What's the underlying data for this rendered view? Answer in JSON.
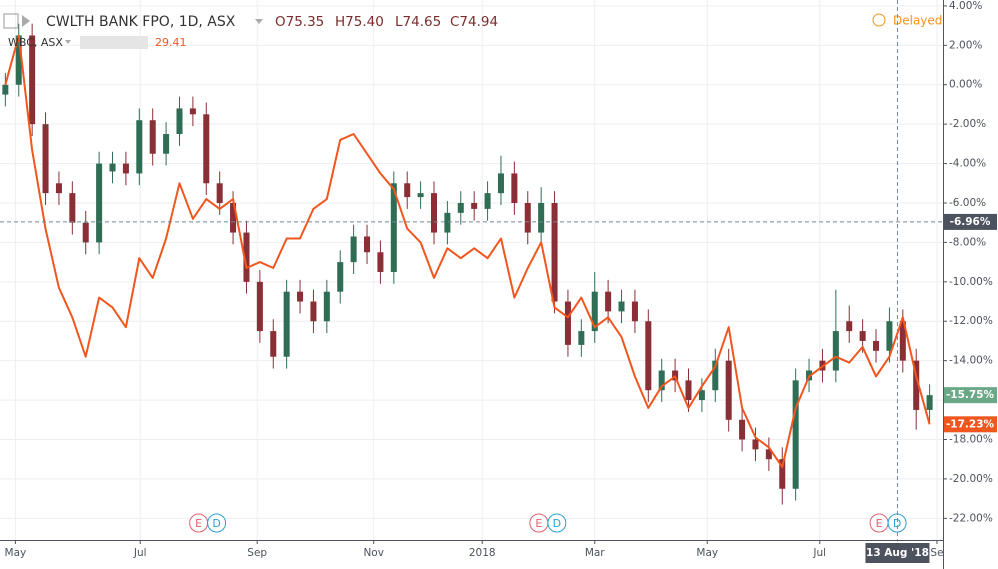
{
  "chart_data": {
    "type": "candlestick",
    "header": {
      "title": "CWLTH BANK FPO, 1D, ASX",
      "ohlc": [
        "O75.35",
        "H75.40",
        "L74.65",
        "C74.94"
      ],
      "compare_name": "WBC, ASX",
      "compare_value": "29.41",
      "status": "Delayed"
    },
    "xlim": [
      -0.4,
      70
    ],
    "xticks": [
      {
        "value": 0.75,
        "label": "May"
      },
      {
        "value": 10.07,
        "label": "Jul"
      },
      {
        "value": 18.8,
        "label": "Sep"
      },
      {
        "value": 27.5,
        "label": "Nov"
      },
      {
        "value": 35.6,
        "label": "2018"
      },
      {
        "value": 44,
        "label": "Mar"
      },
      {
        "value": 52.4,
        "label": "May"
      },
      {
        "value": 60.8,
        "label": "Jul"
      },
      {
        "value": 69.55,
        "label": "Se"
      }
    ],
    "ylim": [
      -23.1,
      4.3
    ],
    "yticks": [
      {
        "value": 4,
        "label": "4.00%"
      },
      {
        "value": 2,
        "label": "2.00%"
      },
      {
        "value": 0,
        "label": "0.00%"
      },
      {
        "value": -2,
        "label": "-2.00%"
      },
      {
        "value": -4,
        "label": "-4.00%"
      },
      {
        "value": -6,
        "label": "-6.00%"
      },
      {
        "value": -8,
        "label": "-8.00%"
      },
      {
        "value": -10,
        "label": "-10.00%"
      },
      {
        "value": -12,
        "label": "-12.00%"
      },
      {
        "value": -14,
        "label": "-14.00%"
      },
      {
        "value": -16,
        "label": "-16.00%"
      },
      {
        "value": -18,
        "label": "-18.00%"
      },
      {
        "value": -20,
        "label": "-20.00%"
      },
      {
        "value": -22,
        "label": "-22.00%"
      }
    ],
    "grid": true,
    "series": [
      {
        "name": "CWLTH BANK FPO, 1D, ASX",
        "up_color": "#2f6e55",
        "down_color": "#8a2f35",
        "last_label": "-15.75%",
        "last_color": "#6aa888",
        "open": [
          -0.5,
          0,
          2.5,
          -2,
          -5,
          -5.5,
          -7,
          -8,
          -4.4,
          -4,
          -4.5,
          -1.8,
          -3.5,
          -2.5,
          -1.2,
          -1.5,
          -5,
          -6,
          -7.5,
          -10,
          -12.5,
          -13.8,
          -10.5,
          -11,
          -12,
          -10.5,
          -9,
          -7.7,
          -8.5,
          -9.5,
          -5,
          -5.7,
          -5.5,
          -7.5,
          -6.5,
          -6,
          -6.3,
          -5.5,
          -4.5,
          -6,
          -7.5,
          -6,
          -11,
          -13.2,
          -12.5,
          -10.5,
          -11.5,
          -11,
          -12,
          -15.5,
          -14.5,
          -15,
          -16,
          -15.5,
          -14,
          -17,
          -18,
          -18.5,
          -19,
          -20.5,
          -15,
          -14,
          -14.5,
          -12,
          -12.5,
          -13,
          -13.5,
          -12,
          -14,
          -16.5
        ],
        "high": [
          0.6,
          3.1,
          3.1,
          -1.4,
          -4.4,
          -4.9,
          -6.4,
          -3.4,
          -3.4,
          -3.4,
          -1.2,
          -1.2,
          -1.9,
          -0.6,
          -0.6,
          -0.9,
          -4.4,
          -5.4,
          -6.9,
          -9.4,
          -11.9,
          -9.9,
          -9.9,
          -10.4,
          -9.9,
          -8.4,
          -7.1,
          -7.1,
          -7.9,
          -4.4,
          -4.4,
          -4.9,
          -4.9,
          -5.9,
          -5.4,
          -5.4,
          -4.9,
          -3.6,
          -3.9,
          -5.4,
          -5.2,
          -5.4,
          -10.4,
          -11.9,
          -9.5,
          -9.9,
          -10.4,
          -10.4,
          -11.4,
          -13.9,
          -13.9,
          -14.4,
          -14.9,
          -13.4,
          -13.4,
          -16.4,
          -17.4,
          -17.9,
          -18.4,
          -14.4,
          -13.9,
          -13.4,
          -10.4,
          -11.2,
          -11.9,
          -12.4,
          -11.3,
          -11.4,
          -13.4,
          -15.2
        ],
        "low": [
          -1.1,
          -0.6,
          -2.6,
          -6.1,
          -6.1,
          -7.6,
          -8.6,
          -8.6,
          -5,
          -5.1,
          -5.1,
          -4.1,
          -4.1,
          -3.1,
          -2.1,
          -5.6,
          -6.6,
          -8.1,
          -10.6,
          -13.1,
          -14.4,
          -14.4,
          -11.6,
          -12.6,
          -12.6,
          -11.1,
          -9.6,
          -9.1,
          -10.1,
          -10.1,
          -6.3,
          -6.3,
          -8.1,
          -8.1,
          -7.1,
          -6.9,
          -6.9,
          -6.1,
          -6.6,
          -8.1,
          -8.1,
          -11.6,
          -13.8,
          -13.8,
          -13.1,
          -12.1,
          -12.1,
          -12.6,
          -16.1,
          -16.1,
          -15.6,
          -16.6,
          -16.6,
          -16.1,
          -17.6,
          -18.6,
          -19.1,
          -19.6,
          -21.3,
          -21.1,
          -15.6,
          -15.1,
          -15.1,
          -13.1,
          -13.6,
          -14.1,
          -14.1,
          -14.6,
          -17.5,
          -17.1
        ],
        "close": [
          0,
          2.5,
          -2,
          -5.5,
          -5.5,
          -7,
          -8,
          -4,
          -4,
          -4.5,
          -1.8,
          -3.5,
          -2.5,
          -1.2,
          -1.5,
          -5,
          -6,
          -7.5,
          -10,
          -12.5,
          -13.8,
          -10.5,
          -11,
          -12,
          -10.5,
          -9,
          -7.7,
          -8.5,
          -9.5,
          -5,
          -5.7,
          -5.5,
          -7.5,
          -6.5,
          -6,
          -6.3,
          -5.5,
          -4.5,
          -6,
          -7.5,
          -6,
          -11,
          -13.2,
          -12.5,
          -10.5,
          -11.5,
          -11,
          -12,
          -15.5,
          -14.5,
          -15,
          -16,
          -15.5,
          -14,
          -17,
          -18,
          -18.5,
          -19,
          -20.5,
          -15,
          -14.5,
          -14.5,
          -12.5,
          -12.5,
          -13,
          -13.5,
          -12,
          -14,
          -16.5,
          -15.75
        ]
      },
      {
        "name": "WBC, ASX",
        "type": "line",
        "color": "#f0561d",
        "last_label": "-17.23%",
        "values": [
          0,
          2.5,
          -3.3,
          -7.3,
          -10.3,
          -11.8,
          -13.8,
          -10.8,
          -11.3,
          -12.3,
          -8.8,
          -9.8,
          -7.8,
          -5,
          -6.8,
          -5.8,
          -6.3,
          -5.8,
          -9.3,
          -9,
          -9.3,
          -7.8,
          -7.8,
          -6.3,
          -5.8,
          -2.8,
          -2.5,
          -3.5,
          -4.5,
          -5.3,
          -7.3,
          -8,
          -9.8,
          -8.3,
          -8.8,
          -8.3,
          -8.8,
          -7.8,
          -10.8,
          -9.3,
          -8,
          -11.3,
          -11.8,
          -10.8,
          -12.3,
          -11.8,
          -12.8,
          -14.8,
          -16.4,
          -15.3,
          -14.8,
          -16.4,
          -15.3,
          -14.3,
          -12.3,
          -16.4,
          -17.9,
          -18.4,
          -19.4,
          -16.4,
          -14.8,
          -14.3,
          -13.8,
          -14.1,
          -13.3,
          -14.8,
          -13.8,
          -11.8,
          -14.8,
          -17.23
        ]
      }
    ],
    "crosshair": {
      "x": 66.6,
      "x_label": "13 Aug '18",
      "y": -6.96,
      "y_label": "-6.96%"
    },
    "events": [
      {
        "x": 15.1,
        "labels": [
          "E",
          "D"
        ]
      },
      {
        "x": 40.5,
        "labels": [
          "E",
          "D"
        ]
      },
      {
        "x": 65.9,
        "labels": [
          "E",
          "D"
        ]
      }
    ]
  }
}
